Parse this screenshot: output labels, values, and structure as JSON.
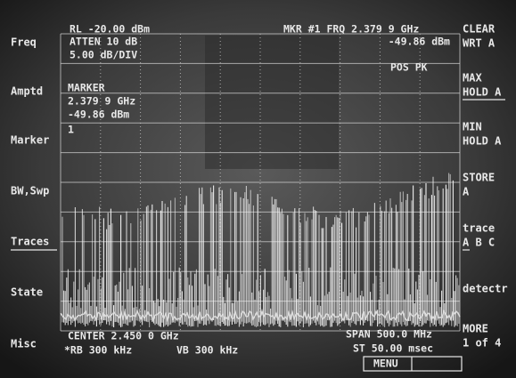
{
  "left_keys": [
    "Freq",
    "Amptd",
    "Marker",
    "BW,Swp",
    "Traces",
    "State",
    "Misc"
  ],
  "right_keys": [
    {
      "lines": [
        "CLEAR",
        "WRT A"
      ]
    },
    {
      "lines": [
        "MAX",
        "HOLD A"
      ]
    },
    {
      "lines": [
        "MIN",
        "HOLD A"
      ]
    },
    {
      "lines": [
        "STORE",
        "A"
      ]
    },
    {
      "lines": [
        "trace",
        "A B C"
      ]
    },
    {
      "lines": [
        "detectr"
      ]
    },
    {
      "lines": [
        "MORE",
        "1 of 4"
      ]
    }
  ],
  "header": {
    "ref_level": "RL -20.00 dBm",
    "atten": "ATTEN 10 dB",
    "scale": "5.00 dB/DIV",
    "marker_freq": "MKR #1 FRQ 2.379 9 GHz",
    "marker_amp": "-49.86 dBm",
    "detector": "POS PK"
  },
  "marker_box": {
    "title": "MARKER",
    "freq": "2.379 9 GHz",
    "amp": "-49.86 dBm",
    "number": "1"
  },
  "footer": {
    "center": "CENTER 2.450 0 GHz",
    "rbw": "*RB 300 kHz",
    "vbw": "VB 300 kHz",
    "span": "SPAN 500.0 MHz",
    "sweep": "ST 50.00 msec",
    "menu": "MENU"
  }
}
